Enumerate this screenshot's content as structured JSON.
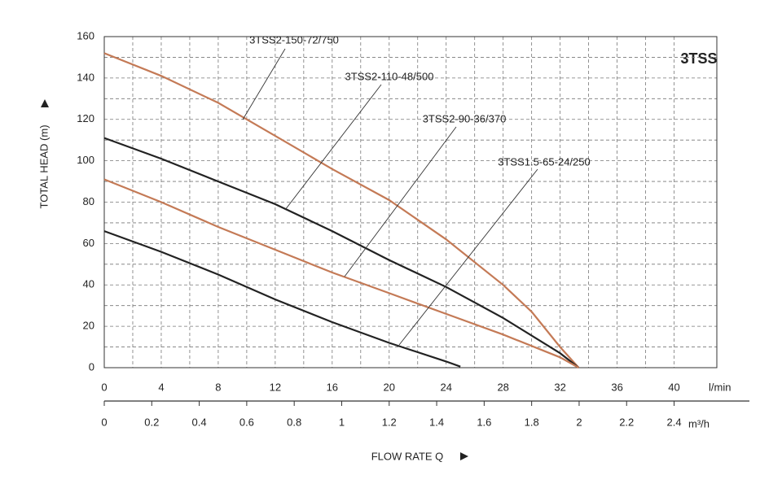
{
  "chart_data": {
    "type": "line",
    "title": "3TSS",
    "ylabel": "TOTAL HEAD (m)",
    "xlabel": "FLOW RATE Q",
    "xunit": "l/min",
    "x2unit": "m³/h",
    "xlim": [
      0,
      43
    ],
    "xticks": [
      0,
      4,
      8,
      12,
      16,
      20,
      24,
      28,
      32,
      36,
      40
    ],
    "x2lim": [
      0,
      2.58
    ],
    "x2ticks": [
      0,
      0.2,
      0.4,
      0.6,
      0.8,
      1,
      1.2,
      1.4,
      1.6,
      1.8,
      2,
      2.2,
      2.4
    ],
    "ylim": [
      0,
      160
    ],
    "yticks": [
      0,
      20,
      40,
      60,
      80,
      100,
      120,
      140,
      160
    ],
    "grid": true,
    "series": [
      {
        "name": "3TSS2-150-72/750",
        "color": "#c47a56",
        "x": [
          0,
          4,
          8,
          12,
          16,
          20,
          24,
          28,
          30,
          32,
          33.3
        ],
        "values": [
          152,
          141,
          128,
          112,
          96,
          81,
          62,
          40,
          27,
          10,
          0
        ]
      },
      {
        "name": "3TSS2-110-48/500",
        "color": "#222222",
        "x": [
          0,
          4,
          8,
          12,
          16,
          20,
          24,
          28,
          32,
          33.3
        ],
        "values": [
          111,
          101,
          90,
          79,
          66,
          52,
          39,
          24,
          7,
          0
        ]
      },
      {
        "name": "3TSS2-90-36/370",
        "color": "#c47a56",
        "x": [
          0,
          4,
          8,
          12,
          16,
          20,
          24,
          28,
          32,
          33.3
        ],
        "values": [
          91,
          80,
          68,
          57,
          46,
          36,
          26,
          16,
          5,
          0
        ]
      },
      {
        "name": "3TSS1.5-65-24/250",
        "color": "#222222",
        "x": [
          0,
          4,
          8,
          12,
          16,
          20,
          24,
          25
        ],
        "values": [
          66,
          56,
          45,
          33,
          22,
          12,
          3,
          0.5
        ]
      }
    ]
  }
}
